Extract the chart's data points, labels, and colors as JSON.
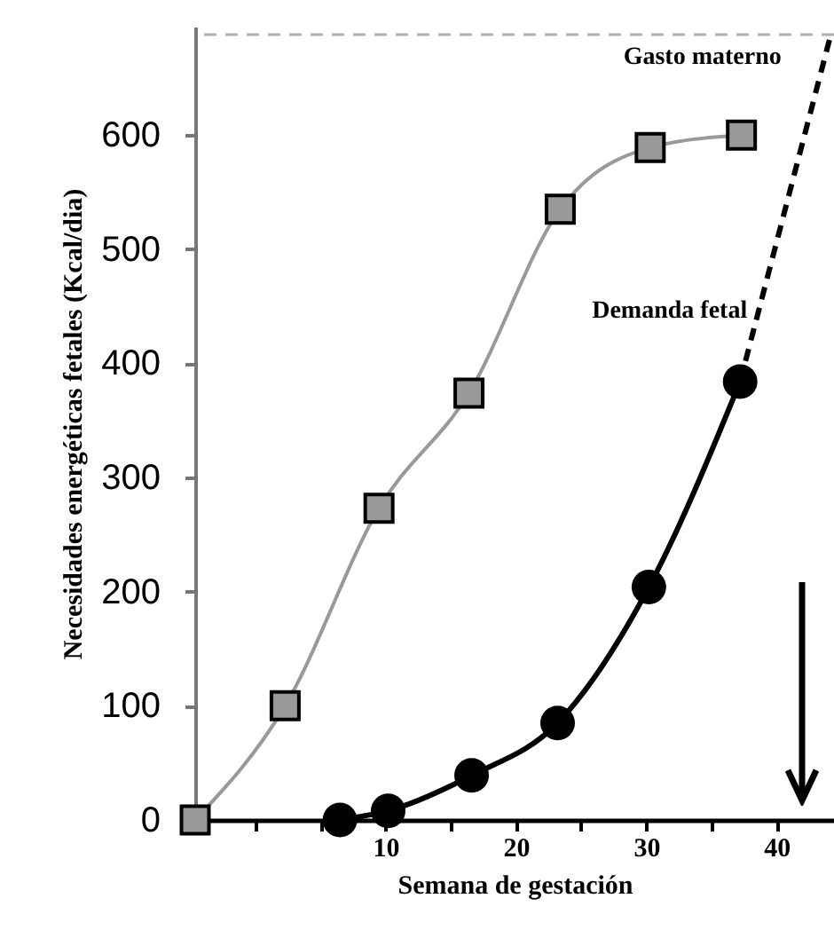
{
  "chart_data": {
    "type": "line",
    "xlabel": "Semana de gestación",
    "ylabel": "Necesidades energéticas fetales (Kcal/dia)",
    "xlim": [
      -4.6,
      44.4
    ],
    "ylim": [
      0,
      695
    ],
    "xticks": [
      {
        "value": 0,
        "label": null
      },
      {
        "value": 5,
        "label": null
      },
      10,
      {
        "value": 15,
        "label": null
      },
      20,
      {
        "value": 25,
        "label": null
      },
      30,
      {
        "value": 35,
        "label": null
      },
      40
    ],
    "yticks": [
      0,
      100,
      200,
      300,
      400,
      500,
      600
    ],
    "grid": false,
    "series": [
      {
        "name": "Gasto materno",
        "color": "#999999",
        "marker": "square",
        "x": [
          -4.6,
          2.3,
          9.5,
          16.4,
          23.4,
          30.3,
          37.3
        ],
        "values": [
          0,
          100,
          273,
          374,
          535,
          589,
          600
        ]
      },
      {
        "name": "Demanda fetal",
        "color": "#000000",
        "marker": "circle",
        "x": [
          6.5,
          10.2,
          16.6,
          23.2,
          30.2,
          37.2
        ],
        "values": [
          0,
          8,
          39,
          85,
          204,
          384
        ]
      },
      {
        "color": "#000000",
        "marker": "none",
        "line_style": "dashed",
        "x": [
          37.2,
          44.2
        ],
        "values": [
          384,
          690
        ]
      }
    ],
    "ref_lines": [
      {
        "axis": "y",
        "value": 688,
        "color": "#b0b0b0",
        "line_style": "dashed"
      }
    ]
  }
}
